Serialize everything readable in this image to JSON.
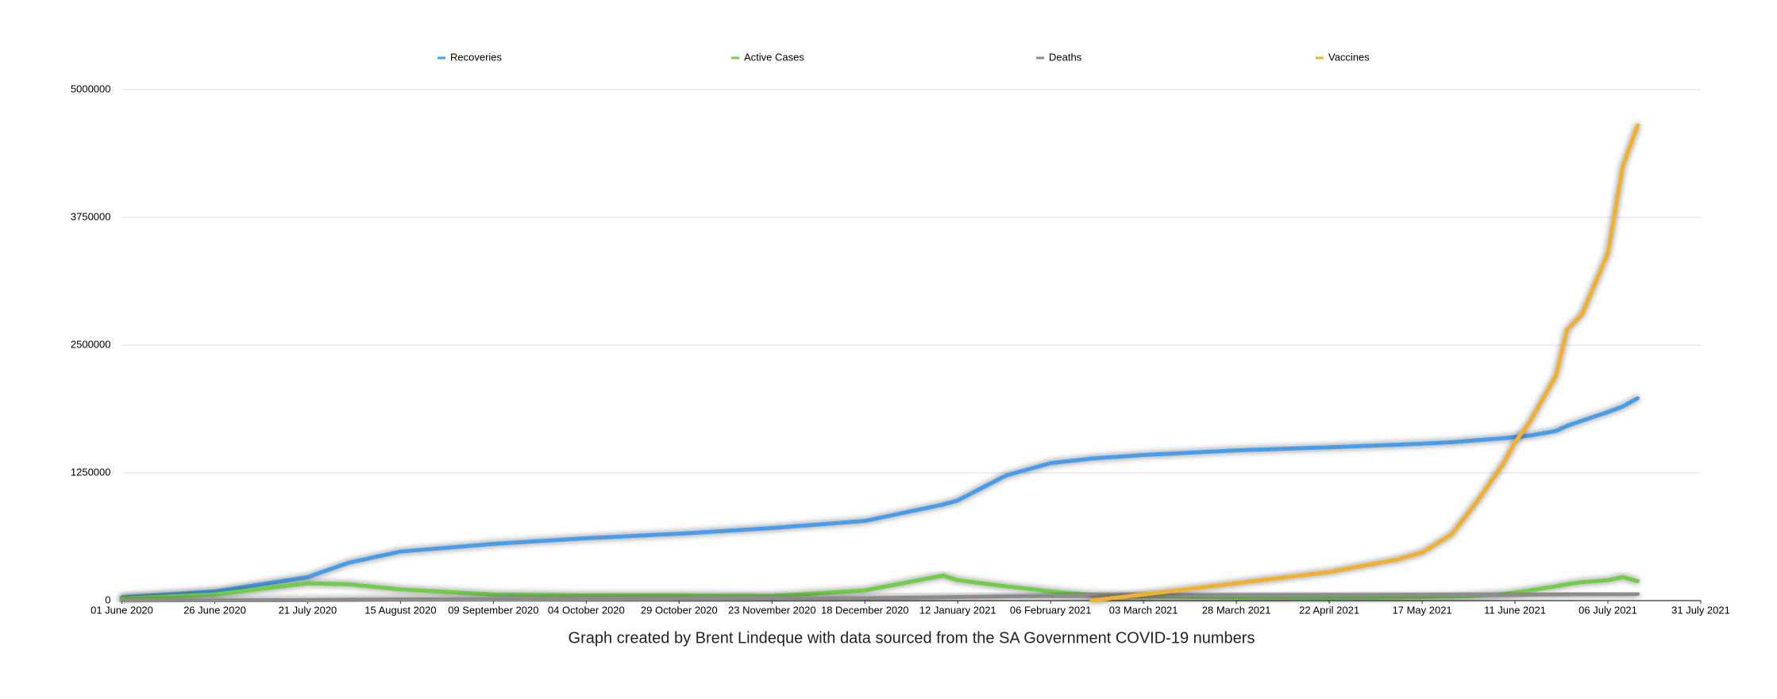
{
  "chart_data": {
    "type": "line",
    "caption": "Graph created by Brent Lindeque with data sourced from the SA Government COVID-19 numbers",
    "x": [
      "2020-06-01",
      "2020-06-26",
      "2020-07-21",
      "2020-08-01",
      "2020-08-15",
      "2020-09-09",
      "2020-10-04",
      "2020-10-29",
      "2020-11-23",
      "2020-12-18",
      "2021-01-08",
      "2021-01-12",
      "2021-01-25",
      "2021-02-06",
      "2021-02-17",
      "2021-03-03",
      "2021-03-28",
      "2021-04-22",
      "2021-05-10",
      "2021-05-17",
      "2021-05-25",
      "2021-06-01",
      "2021-06-08",
      "2021-06-11",
      "2021-06-15",
      "2021-06-22",
      "2021-06-25",
      "2021-06-29",
      "2021-07-06",
      "2021-07-10",
      "2021-07-14"
    ],
    "series": [
      {
        "name": "Recoveries",
        "color": "#4a9de8",
        "values": [
          30000,
          90000,
          230000,
          370000,
          480000,
          555000,
          610000,
          655000,
          710000,
          780000,
          940000,
          980000,
          1225000,
          1345000,
          1390000,
          1425000,
          1470000,
          1500000,
          1525000,
          1535000,
          1550000,
          1570000,
          1590000,
          1600000,
          1615000,
          1660000,
          1710000,
          1760000,
          1845000,
          1900000,
          1980000
        ]
      },
      {
        "name": "Active Cases",
        "color": "#72cc4c",
        "values": [
          20000,
          60000,
          170000,
          160000,
          110000,
          60000,
          50000,
          50000,
          45000,
          100000,
          245000,
          200000,
          140000,
          90000,
          55000,
          40000,
          30000,
          25000,
          30000,
          35000,
          40000,
          50000,
          65000,
          80000,
          100000,
          140000,
          160000,
          180000,
          200000,
          230000,
          190000
        ]
      },
      {
        "name": "Deaths",
        "color": "#8c8c8c",
        "values": [
          1000,
          2000,
          5000,
          9000,
          12000,
          15000,
          17000,
          19500,
          21000,
          23000,
          32000,
          35000,
          42000,
          46000,
          48500,
          50000,
          52000,
          54000,
          55000,
          55500,
          56000,
          57000,
          58000,
          58500,
          59500,
          61000,
          62000,
          63000,
          64000,
          64500,
          65000
        ]
      },
      {
        "name": "Vaccines",
        "color": "#f0b030",
        "values": [
          null,
          null,
          null,
          null,
          null,
          null,
          null,
          null,
          null,
          null,
          null,
          null,
          null,
          null,
          0,
          60000,
          170000,
          280000,
          400000,
          470000,
          650000,
          980000,
          1350000,
          1550000,
          1750000,
          2200000,
          2650000,
          2800000,
          3400000,
          4250000,
          4650000
        ]
      }
    ],
    "xlim": [
      "2020-06-01",
      "2021-07-31"
    ],
    "xticks": [
      {
        "value": "2020-06-01",
        "label": "01 June 2020"
      },
      {
        "value": "2020-06-26",
        "label": "26 June 2020"
      },
      {
        "value": "2020-07-21",
        "label": "21 July 2020"
      },
      {
        "value": "2020-08-15",
        "label": "15 August 2020"
      },
      {
        "value": "2020-09-09",
        "label": "09 September 2020"
      },
      {
        "value": "2020-10-04",
        "label": "04 October 2020"
      },
      {
        "value": "2020-10-29",
        "label": "29 October 2020"
      },
      {
        "value": "2020-11-23",
        "label": "23 November 2020"
      },
      {
        "value": "2020-12-18",
        "label": "18 December 2020"
      },
      {
        "value": "2021-01-12",
        "label": "12 January 2021"
      },
      {
        "value": "2021-02-06",
        "label": "06 February 2021"
      },
      {
        "value": "2021-03-03",
        "label": "03 March 2021"
      },
      {
        "value": "2021-03-28",
        "label": "28 March 2021"
      },
      {
        "value": "2021-04-22",
        "label": "22 April 2021"
      },
      {
        "value": "2021-05-17",
        "label": "17 May 2021"
      },
      {
        "value": "2021-06-11",
        "label": "11 June 2021"
      },
      {
        "value": "2021-07-06",
        "label": "06 July 2021"
      },
      {
        "value": "2021-07-31",
        "label": "31 July 2021"
      }
    ],
    "ylim": [
      0,
      5000000
    ],
    "yticks": [
      0,
      1250000,
      2500000,
      3750000,
      5000000
    ],
    "grid": true,
    "legend": "top"
  }
}
